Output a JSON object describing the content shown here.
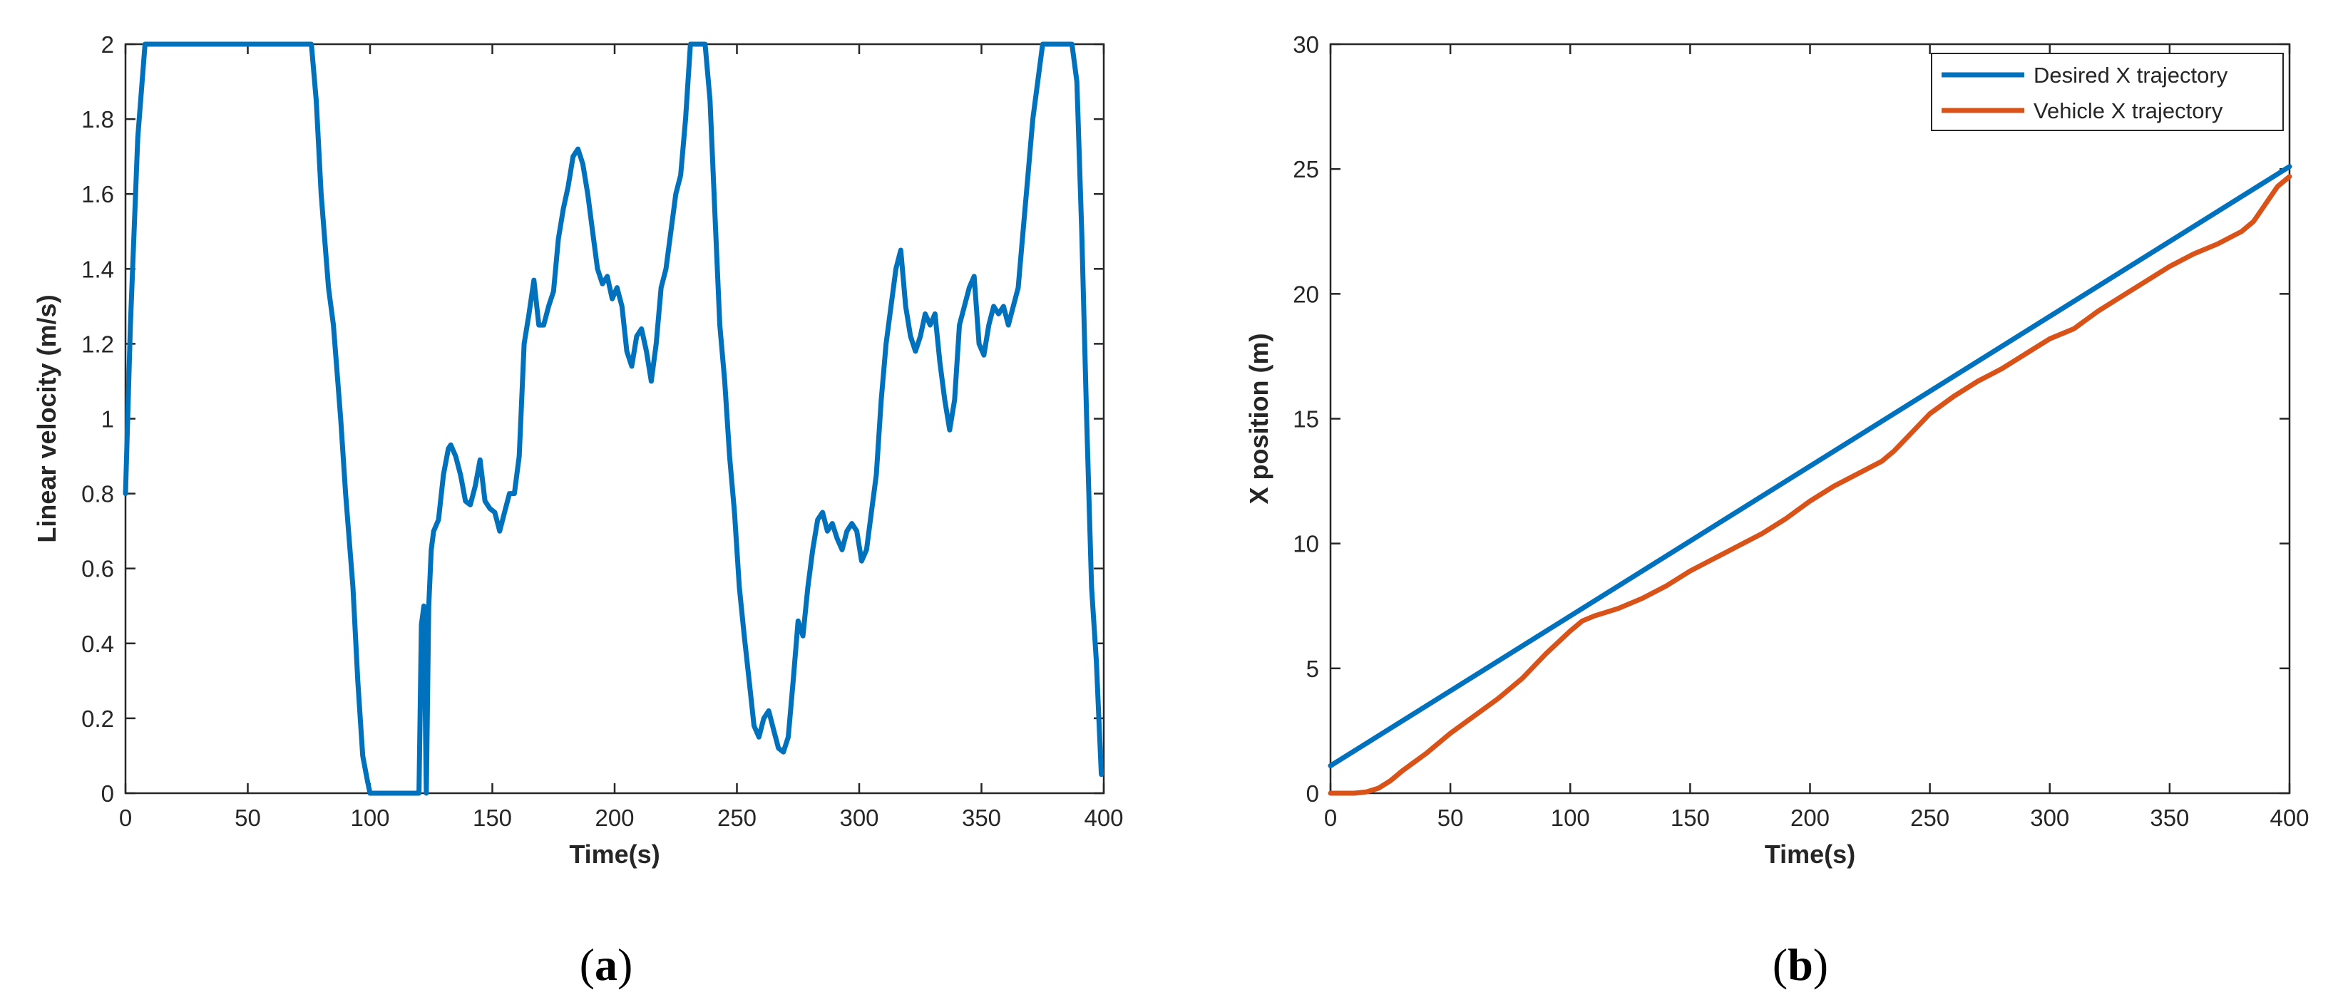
{
  "chart_data": [
    {
      "type": "line",
      "panel": "(a)",
      "panel_open": "(",
      "panel_letter": "a",
      "panel_close": ")",
      "title": "",
      "xlabel": "Time(s)",
      "ylabel": "Linear velocity (m/s)",
      "xlim": [
        0,
        400
      ],
      "ylim": [
        0,
        2
      ],
      "xticks": [
        0,
        50,
        100,
        150,
        200,
        250,
        300,
        350,
        400
      ],
      "yticks": [
        0,
        0.2,
        0.4,
        0.6,
        0.8,
        1,
        1.2,
        1.4,
        1.6,
        1.8,
        2
      ],
      "ytick_labels": [
        "0",
        "0.2",
        "0.4",
        "0.6",
        "0.8",
        "1",
        "1.2",
        "1.4",
        "1.6",
        "1.8",
        "2"
      ],
      "grid": false,
      "series": [
        {
          "color": "#0072BD",
          "x": [
            0,
            2,
            5,
            8,
            10,
            20,
            40,
            60,
            76,
            78,
            80,
            83,
            85,
            88,
            90,
            93,
            95,
            97,
            99,
            100,
            105,
            110,
            115,
            120,
            121,
            122,
            123,
            124,
            125,
            126,
            128,
            130,
            132,
            133,
            135,
            137,
            139,
            141,
            143,
            145,
            147,
            149,
            151,
            153,
            155,
            157,
            159,
            161,
            163,
            165,
            167,
            169,
            171,
            173,
            175,
            177,
            179,
            181,
            183,
            185,
            187,
            189,
            191,
            193,
            195,
            197,
            199,
            201,
            203,
            205,
            207,
            209,
            211,
            213,
            215,
            217,
            219,
            221,
            223,
            225,
            227,
            229,
            231,
            233,
            235,
            237,
            239,
            241,
            243,
            245,
            247,
            249,
            251,
            253,
            255,
            257,
            259,
            261,
            263,
            265,
            267,
            269,
            271,
            273,
            275,
            277,
            279,
            281,
            283,
            285,
            287,
            289,
            291,
            293,
            295,
            297,
            299,
            301,
            303,
            305,
            307,
            309,
            311,
            313,
            315,
            317,
            319,
            321,
            323,
            325,
            327,
            329,
            331,
            333,
            335,
            337,
            339,
            341,
            343,
            345,
            347,
            349,
            351,
            353,
            355,
            357,
            359,
            361,
            363,
            365,
            367,
            369,
            371,
            373,
            375,
            378,
            381,
            384,
            387,
            389,
            391,
            393,
            395,
            397,
            398,
            399
          ],
          "y": [
            0.8,
            1.25,
            1.75,
            2,
            2,
            2,
            2,
            2,
            2,
            1.85,
            1.6,
            1.35,
            1.25,
            1.0,
            0.8,
            0.55,
            0.3,
            0.1,
            0.03,
            0.0,
            0.0,
            0.0,
            0.0,
            0.0,
            0.45,
            0.5,
            0.0,
            0.5,
            0.65,
            0.7,
            0.73,
            0.85,
            0.92,
            0.93,
            0.9,
            0.85,
            0.78,
            0.77,
            0.82,
            0.89,
            0.78,
            0.76,
            0.75,
            0.7,
            0.75,
            0.8,
            0.8,
            0.9,
            1.2,
            1.28,
            1.37,
            1.25,
            1.25,
            1.3,
            1.34,
            1.48,
            1.56,
            1.62,
            1.7,
            1.72,
            1.68,
            1.6,
            1.5,
            1.4,
            1.36,
            1.38,
            1.32,
            1.35,
            1.3,
            1.18,
            1.14,
            1.22,
            1.24,
            1.18,
            1.1,
            1.2,
            1.35,
            1.4,
            1.5,
            1.6,
            1.65,
            1.8,
            2,
            2,
            2,
            2,
            1.85,
            1.55,
            1.25,
            1.1,
            0.9,
            0.75,
            0.55,
            0.42,
            0.3,
            0.18,
            0.15,
            0.2,
            0.22,
            0.17,
            0.12,
            0.11,
            0.15,
            0.3,
            0.46,
            0.42,
            0.55,
            0.65,
            0.73,
            0.75,
            0.7,
            0.72,
            0.68,
            0.65,
            0.7,
            0.72,
            0.7,
            0.62,
            0.65,
            0.75,
            0.85,
            1.05,
            1.2,
            1.3,
            1.4,
            1.45,
            1.3,
            1.22,
            1.18,
            1.22,
            1.28,
            1.25,
            1.28,
            1.15,
            1.05,
            0.97,
            1.05,
            1.25,
            1.3,
            1.35,
            1.38,
            1.2,
            1.17,
            1.25,
            1.3,
            1.28,
            1.3,
            1.25,
            1.3,
            1.35,
            1.5,
            1.65,
            1.8,
            1.9,
            2,
            2,
            2,
            2,
            2,
            1.9,
            1.5,
            1.0,
            0.55,
            0.35,
            0.2,
            0.05
          ]
        }
      ]
    },
    {
      "type": "line",
      "panel": "(b)",
      "panel_open": "(",
      "panel_letter": "b",
      "panel_close": ")",
      "title": "",
      "xlabel": "Time(s)",
      "ylabel": "X position (m)",
      "xlim": [
        0,
        400
      ],
      "ylim": [
        0,
        30
      ],
      "xticks": [
        0,
        50,
        100,
        150,
        200,
        250,
        300,
        350,
        400
      ],
      "yticks": [
        0,
        5,
        10,
        15,
        20,
        25,
        30
      ],
      "ytick_labels": [
        "0",
        "5",
        "10",
        "15",
        "20",
        "25",
        "30"
      ],
      "grid": false,
      "legend": "top-right",
      "series": [
        {
          "name": "Desired X trajectory",
          "color": "#0072BD",
          "x": [
            0,
            400
          ],
          "y": [
            1.1,
            25.1
          ]
        },
        {
          "name": "Vehicle X trajectory",
          "color": "#D95319",
          "x": [
            0,
            5,
            10,
            15,
            20,
            25,
            30,
            40,
            50,
            60,
            70,
            80,
            90,
            100,
            105,
            110,
            120,
            130,
            140,
            150,
            160,
            170,
            180,
            190,
            200,
            210,
            220,
            230,
            235,
            240,
            250,
            260,
            270,
            280,
            290,
            300,
            310,
            320,
            330,
            340,
            350,
            360,
            370,
            380,
            385,
            390,
            395,
            400
          ],
          "y": [
            0,
            0,
            0,
            0.05,
            0.2,
            0.5,
            0.9,
            1.6,
            2.4,
            3.1,
            3.8,
            4.6,
            5.6,
            6.5,
            6.9,
            7.1,
            7.4,
            7.8,
            8.3,
            8.9,
            9.4,
            9.9,
            10.4,
            11.0,
            11.7,
            12.3,
            12.8,
            13.3,
            13.7,
            14.2,
            15.2,
            15.9,
            16.5,
            17.0,
            17.6,
            18.2,
            18.6,
            19.3,
            19.9,
            20.5,
            21.1,
            21.6,
            22.0,
            22.5,
            22.9,
            23.6,
            24.3,
            24.7
          ]
        }
      ]
    }
  ]
}
